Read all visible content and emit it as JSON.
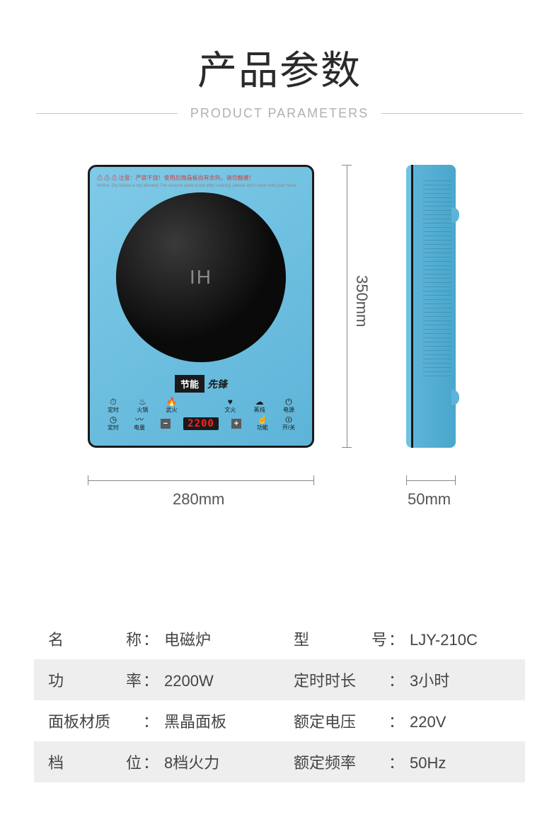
{
  "header": {
    "title_cn": "产品参数",
    "title_en": "PRODUCT PARAMETERS"
  },
  "product": {
    "warning_text": "⚠ ⚠ ⚠ 注意：严禁干烧！使用后微晶板尚有余热，请勿触摸！",
    "warning_sub": "Notice: Dry braise is not allowed! The ceramic plate is hot after cooking, please don't touch with your hand",
    "ih_label": "IH",
    "brand_box": "节能",
    "brand_text": "先锋",
    "display_value": "2200",
    "controls_row1": [
      "定时",
      "火锅",
      "武火",
      "",
      "文火",
      "蒸炖",
      "电源"
    ],
    "controls_row2": [
      "定时",
      "电量",
      "−",
      "",
      "+",
      "功能",
      "开/关"
    ],
    "dimensions": {
      "width_label": "280mm",
      "height_label": "350mm",
      "depth_label": "50mm"
    },
    "colors": {
      "body": "#6cbfe0",
      "border": "#1a1a1a",
      "display_bg": "#1a1a1a",
      "display_fg": "#ff2020"
    }
  },
  "specs": {
    "rows": [
      {
        "shaded": false,
        "left_label_chars": [
          "名",
          "称"
        ],
        "left_value": "电磁炉",
        "right_label_chars": [
          "型",
          "号"
        ],
        "right_value": "LJY-210C"
      },
      {
        "shaded": true,
        "left_label_chars": [
          "功",
          "率"
        ],
        "left_value": "2200W",
        "right_label_chars": [
          "定",
          "时",
          "时",
          "长"
        ],
        "right_value": "3小时"
      },
      {
        "shaded": false,
        "left_label_chars": [
          "面",
          "板",
          "材",
          "质"
        ],
        "left_value": "黑晶面板",
        "right_label_chars": [
          "额",
          "定",
          "电",
          "压"
        ],
        "right_value": "220V"
      },
      {
        "shaded": true,
        "left_label_chars": [
          "档",
          "位"
        ],
        "left_value": "8档火力",
        "right_label_chars": [
          "额",
          "定",
          "频",
          "率"
        ],
        "right_value": "50Hz"
      }
    ]
  }
}
